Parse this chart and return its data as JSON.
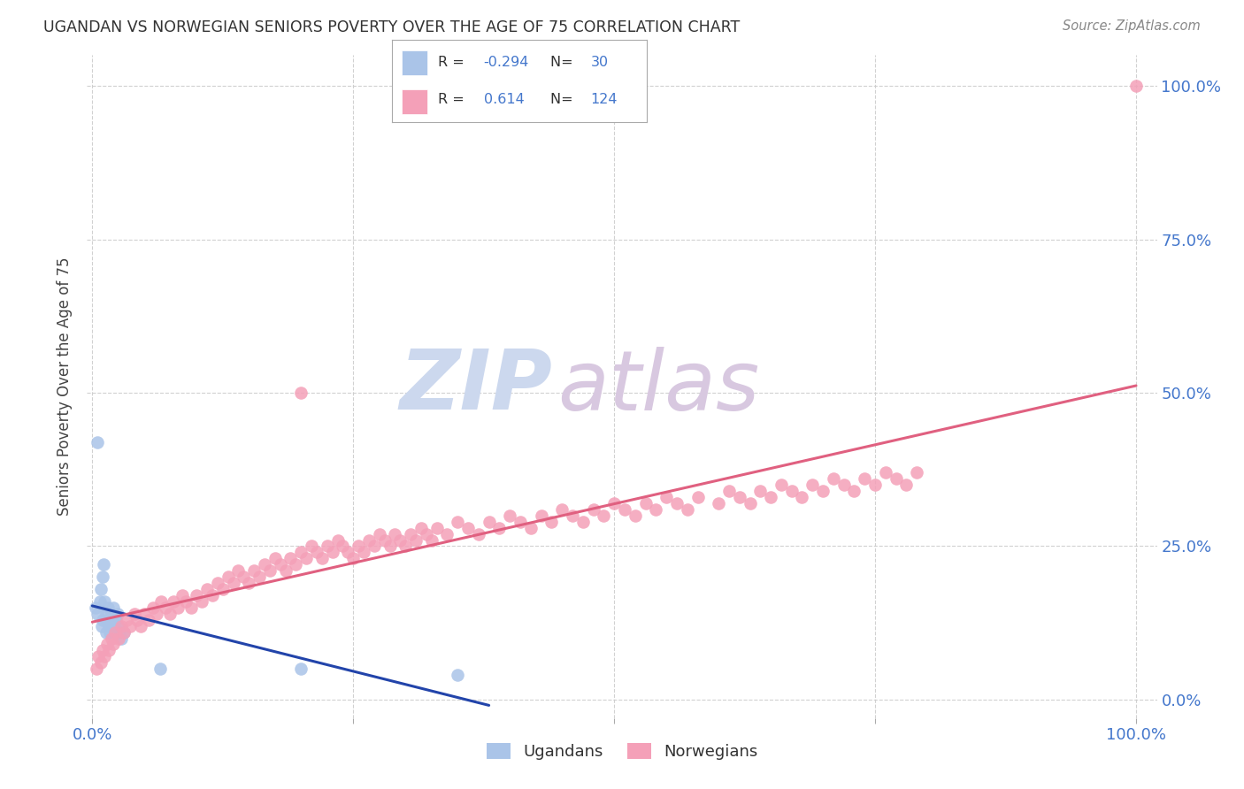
{
  "title": "UGANDAN VS NORWEGIAN SENIORS POVERTY OVER THE AGE OF 75 CORRELATION CHART",
  "source": "Source: ZipAtlas.com",
  "ylabel": "Seniors Poverty Over the Age of 75",
  "ugandan_R": -0.294,
  "ugandan_N": 30,
  "norwegian_R": 0.614,
  "norwegian_N": 124,
  "ugandan_color": "#aac4e8",
  "norwegian_color": "#f4a0b8",
  "ugandan_line_color": "#2244aa",
  "norwegian_line_color": "#e06080",
  "background_color": "#ffffff",
  "grid_color": "#cccccc",
  "tick_color": "#4477cc",
  "ylabel_color": "#444444",
  "title_color": "#333333",
  "source_color": "#888888",
  "watermark_zip_color": "#ccd8ee",
  "watermark_atlas_color": "#d8c8e0",
  "legend_border_color": "#aaaaaa",
  "dot_size": 110,
  "ugandan_x": [
    0.003,
    0.005,
    0.007,
    0.008,
    0.009,
    0.01,
    0.01,
    0.011,
    0.012,
    0.013,
    0.013,
    0.014,
    0.015,
    0.016,
    0.017,
    0.018,
    0.019,
    0.02,
    0.021,
    0.022,
    0.023,
    0.024,
    0.025,
    0.026,
    0.028,
    0.03,
    0.005,
    0.2,
    0.35,
    0.065
  ],
  "ugandan_y": [
    0.15,
    0.14,
    0.16,
    0.18,
    0.12,
    0.13,
    0.2,
    0.22,
    0.16,
    0.14,
    0.11,
    0.13,
    0.15,
    0.12,
    0.11,
    0.14,
    0.13,
    0.15,
    0.12,
    0.11,
    0.13,
    0.14,
    0.12,
    0.11,
    0.1,
    0.11,
    0.42,
    0.05,
    0.04,
    0.05
  ],
  "norwegian_x": [
    0.004,
    0.006,
    0.008,
    0.01,
    0.012,
    0.014,
    0.016,
    0.018,
    0.02,
    0.022,
    0.025,
    0.028,
    0.03,
    0.033,
    0.036,
    0.04,
    0.043,
    0.046,
    0.05,
    0.054,
    0.058,
    0.062,
    0.066,
    0.07,
    0.074,
    0.078,
    0.082,
    0.086,
    0.09,
    0.095,
    0.1,
    0.105,
    0.11,
    0.115,
    0.12,
    0.125,
    0.13,
    0.135,
    0.14,
    0.145,
    0.15,
    0.155,
    0.16,
    0.165,
    0.17,
    0.175,
    0.18,
    0.185,
    0.19,
    0.195,
    0.2,
    0.205,
    0.21,
    0.215,
    0.22,
    0.225,
    0.23,
    0.235,
    0.24,
    0.245,
    0.25,
    0.255,
    0.26,
    0.265,
    0.27,
    0.275,
    0.28,
    0.285,
    0.29,
    0.295,
    0.3,
    0.305,
    0.31,
    0.315,
    0.32,
    0.325,
    0.33,
    0.34,
    0.35,
    0.36,
    0.37,
    0.38,
    0.39,
    0.4,
    0.41,
    0.42,
    0.43,
    0.44,
    0.45,
    0.46,
    0.47,
    0.48,
    0.49,
    0.5,
    0.51,
    0.52,
    0.53,
    0.54,
    0.55,
    0.56,
    0.57,
    0.58,
    0.6,
    0.61,
    0.62,
    0.63,
    0.64,
    0.65,
    0.66,
    0.67,
    0.68,
    0.69,
    0.7,
    0.71,
    0.72,
    0.73,
    0.74,
    0.75,
    0.76,
    0.77,
    0.78,
    0.79,
    0.2,
    1.0
  ],
  "norwegian_y": [
    0.05,
    0.07,
    0.06,
    0.08,
    0.07,
    0.09,
    0.08,
    0.1,
    0.09,
    0.11,
    0.1,
    0.12,
    0.11,
    0.13,
    0.12,
    0.14,
    0.13,
    0.12,
    0.14,
    0.13,
    0.15,
    0.14,
    0.16,
    0.15,
    0.14,
    0.16,
    0.15,
    0.17,
    0.16,
    0.15,
    0.17,
    0.16,
    0.18,
    0.17,
    0.19,
    0.18,
    0.2,
    0.19,
    0.21,
    0.2,
    0.19,
    0.21,
    0.2,
    0.22,
    0.21,
    0.23,
    0.22,
    0.21,
    0.23,
    0.22,
    0.24,
    0.23,
    0.25,
    0.24,
    0.23,
    0.25,
    0.24,
    0.26,
    0.25,
    0.24,
    0.23,
    0.25,
    0.24,
    0.26,
    0.25,
    0.27,
    0.26,
    0.25,
    0.27,
    0.26,
    0.25,
    0.27,
    0.26,
    0.28,
    0.27,
    0.26,
    0.28,
    0.27,
    0.29,
    0.28,
    0.27,
    0.29,
    0.28,
    0.3,
    0.29,
    0.28,
    0.3,
    0.29,
    0.31,
    0.3,
    0.29,
    0.31,
    0.3,
    0.32,
    0.31,
    0.3,
    0.32,
    0.31,
    0.33,
    0.32,
    0.31,
    0.33,
    0.32,
    0.34,
    0.33,
    0.32,
    0.34,
    0.33,
    0.35,
    0.34,
    0.33,
    0.35,
    0.34,
    0.36,
    0.35,
    0.34,
    0.36,
    0.35,
    0.37,
    0.36,
    0.35,
    0.37,
    0.5,
    1.0
  ],
  "xlim": [
    -0.005,
    1.02
  ],
  "ylim": [
    -0.03,
    1.05
  ],
  "x_ticks": [
    0.0,
    0.25,
    0.5,
    0.75,
    1.0
  ],
  "y_ticks": [
    0.0,
    0.25,
    0.5,
    0.75,
    1.0
  ],
  "x_tick_labels": [
    "0.0%",
    "",
    "",
    "",
    "100.0%"
  ],
  "y_tick_labels_right": [
    "0.0%",
    "25.0%",
    "50.0%",
    "75.0%",
    "100.0%"
  ]
}
